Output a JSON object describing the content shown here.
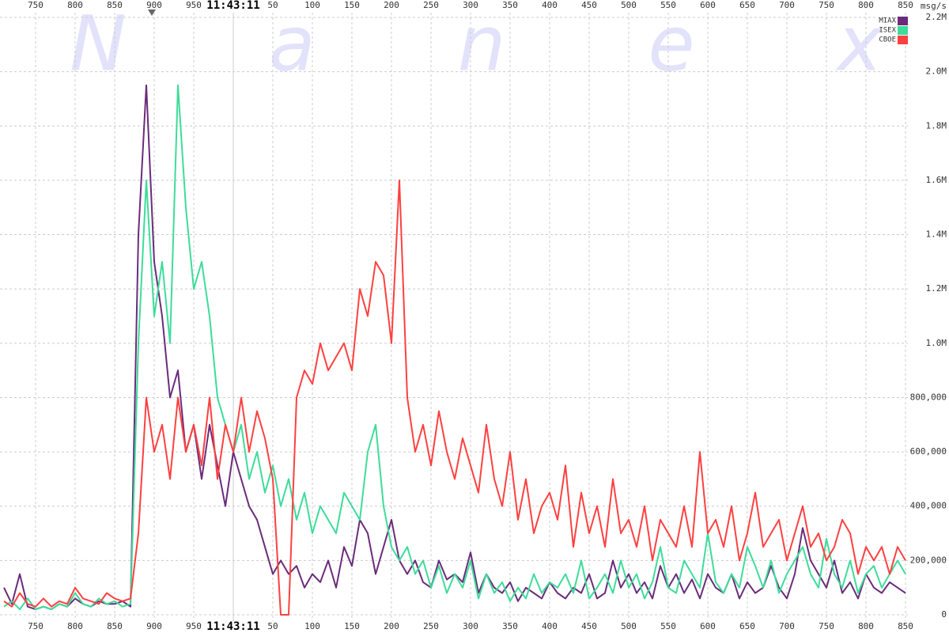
{
  "chart_data": {
    "type": "line",
    "watermark": "Nanex",
    "y_axis_label": "msg/s",
    "xlim": [
      705,
      1853
    ],
    "ylim": [
      0,
      2200000
    ],
    "xticks": [
      750,
      800,
      850,
      900,
      950,
      {
        "value": 1000,
        "label": "11:43:11"
      },
      {
        "value": 1050,
        "label": "50"
      },
      {
        "value": 1100,
        "label": "100"
      },
      {
        "value": 1150,
        "label": "150"
      },
      {
        "value": 1200,
        "label": "200"
      },
      {
        "value": 1250,
        "label": "250"
      },
      {
        "value": 1300,
        "label": "300"
      },
      {
        "value": 1350,
        "label": "350"
      },
      {
        "value": 1400,
        "label": "400"
      },
      {
        "value": 1450,
        "label": "450"
      },
      {
        "value": 1500,
        "label": "500"
      },
      {
        "value": 1550,
        "label": "550"
      },
      {
        "value": 1600,
        "label": "600"
      },
      {
        "value": 1650,
        "label": "650"
      },
      {
        "value": 1700,
        "label": "700"
      },
      {
        "value": 1750,
        "label": "750"
      },
      {
        "value": 1800,
        "label": "800"
      },
      {
        "value": 1850,
        "label": "850"
      }
    ],
    "yticks": [
      0,
      {
        "value": 200000,
        "label": "200,000"
      },
      {
        "value": 400000,
        "label": "400,000"
      },
      {
        "value": 600000,
        "label": "600,000"
      },
      {
        "value": 800000,
        "label": "800,000"
      },
      {
        "value": 1000000,
        "label": "1.0M"
      },
      {
        "value": 1200000,
        "label": "1.2M"
      },
      {
        "value": 1400000,
        "label": "1.4M"
      },
      {
        "value": 1600000,
        "label": "1.6M"
      },
      {
        "value": 1800000,
        "label": "1.8M"
      },
      {
        "value": 2000000,
        "label": "2.0M"
      },
      {
        "value": 2200000,
        "label": "2.2M"
      }
    ],
    "grid": true,
    "legend": "upper right",
    "x": [
      710,
      720,
      730,
      740,
      750,
      760,
      770,
      780,
      790,
      800,
      810,
      820,
      830,
      840,
      850,
      860,
      870,
      880,
      890,
      900,
      910,
      920,
      930,
      940,
      950,
      960,
      970,
      980,
      990,
      1000,
      1010,
      1020,
      1030,
      1040,
      1050,
      1060,
      1070,
      1080,
      1090,
      1100,
      1110,
      1120,
      1130,
      1140,
      1150,
      1160,
      1170,
      1180,
      1190,
      1200,
      1210,
      1220,
      1230,
      1240,
      1250,
      1260,
      1270,
      1280,
      1290,
      1300,
      1310,
      1320,
      1330,
      1340,
      1350,
      1360,
      1370,
      1380,
      1390,
      1400,
      1410,
      1420,
      1430,
      1440,
      1450,
      1460,
      1470,
      1480,
      1490,
      1500,
      1510,
      1520,
      1530,
      1540,
      1550,
      1560,
      1570,
      1580,
      1590,
      1600,
      1610,
      1620,
      1630,
      1640,
      1650,
      1660,
      1670,
      1680,
      1690,
      1700,
      1710,
      1720,
      1730,
      1740,
      1750,
      1760,
      1770,
      1780,
      1790,
      1800,
      1810,
      1820,
      1830,
      1840,
      1850
    ],
    "series": [
      {
        "name": "MIAX",
        "color": "#6a2c7a",
        "values": [
          100000,
          40000,
          150000,
          30000,
          20000,
          30000,
          20000,
          40000,
          30000,
          60000,
          40000,
          30000,
          50000,
          40000,
          40000,
          50000,
          30000,
          1400000,
          1950000,
          1300000,
          1100000,
          800000,
          900000,
          600000,
          700000,
          500000,
          700000,
          550000,
          400000,
          600000,
          500000,
          400000,
          350000,
          250000,
          150000,
          200000,
          150000,
          180000,
          100000,
          150000,
          120000,
          200000,
          100000,
          250000,
          180000,
          350000,
          300000,
          150000,
          250000,
          350000,
          200000,
          150000,
          200000,
          120000,
          100000,
          200000,
          130000,
          150000,
          120000,
          230000,
          80000,
          150000,
          100000,
          80000,
          120000,
          50000,
          100000,
          80000,
          60000,
          120000,
          80000,
          60000,
          100000,
          80000,
          150000,
          60000,
          80000,
          200000,
          100000,
          150000,
          80000,
          120000,
          60000,
          180000,
          100000,
          150000,
          80000,
          130000,
          60000,
          150000,
          100000,
          80000,
          150000,
          60000,
          120000,
          80000,
          100000,
          180000,
          100000,
          60000,
          150000,
          320000,
          200000,
          150000,
          100000,
          200000,
          80000,
          120000,
          60000,
          150000,
          100000,
          80000,
          120000,
          100000,
          80000
        ]
      },
      {
        "name": "ISEX",
        "color": "#3ddc9a",
        "values": [
          30000,
          50000,
          20000,
          60000,
          20000,
          30000,
          20000,
          40000,
          30000,
          80000,
          40000,
          30000,
          60000,
          40000,
          50000,
          30000,
          40000,
          1000000,
          1600000,
          1100000,
          1300000,
          1000000,
          1950000,
          1500000,
          1200000,
          1300000,
          1100000,
          800000,
          700000,
          600000,
          700000,
          500000,
          600000,
          450000,
          550000,
          400000,
          500000,
          350000,
          450000,
          300000,
          400000,
          350000,
          300000,
          450000,
          400000,
          350000,
          600000,
          700000,
          400000,
          250000,
          200000,
          250000,
          150000,
          200000,
          100000,
          180000,
          80000,
          150000,
          100000,
          200000,
          60000,
          150000,
          80000,
          120000,
          50000,
          100000,
          60000,
          150000,
          80000,
          120000,
          100000,
          150000,
          80000,
          200000,
          60000,
          100000,
          150000,
          80000,
          200000,
          100000,
          150000,
          60000,
          120000,
          250000,
          100000,
          80000,
          200000,
          150000,
          100000,
          300000,
          120000,
          80000,
          150000,
          100000,
          250000,
          180000,
          100000,
          200000,
          80000,
          150000,
          200000,
          250000,
          150000,
          100000,
          280000,
          150000,
          100000,
          200000,
          80000,
          150000,
          180000,
          100000,
          150000,
          200000,
          150000
        ]
      },
      {
        "name": "CBOE",
        "color": "#ff4040",
        "values": [
          50000,
          30000,
          80000,
          40000,
          30000,
          60000,
          30000,
          50000,
          40000,
          100000,
          60000,
          50000,
          40000,
          80000,
          60000,
          50000,
          60000,
          300000,
          800000,
          600000,
          700000,
          500000,
          800000,
          600000,
          700000,
          550000,
          800000,
          500000,
          700000,
          600000,
          800000,
          600000,
          750000,
          650000,
          500000,
          0,
          0,
          800000,
          900000,
          850000,
          1000000,
          900000,
          950000,
          1000000,
          900000,
          1200000,
          1100000,
          1300000,
          1250000,
          1000000,
          1600000,
          800000,
          600000,
          700000,
          550000,
          750000,
          600000,
          500000,
          650000,
          550000,
          450000,
          700000,
          500000,
          400000,
          600000,
          350000,
          500000,
          300000,
          400000,
          450000,
          350000,
          550000,
          250000,
          450000,
          300000,
          400000,
          250000,
          500000,
          300000,
          350000,
          250000,
          400000,
          200000,
          350000,
          300000,
          250000,
          400000,
          250000,
          600000,
          300000,
          350000,
          250000,
          400000,
          200000,
          300000,
          450000,
          250000,
          300000,
          350000,
          200000,
          300000,
          400000,
          250000,
          300000,
          200000,
          250000,
          350000,
          300000,
          150000,
          250000,
          200000,
          250000,
          150000,
          250000,
          200000
        ]
      }
    ]
  }
}
